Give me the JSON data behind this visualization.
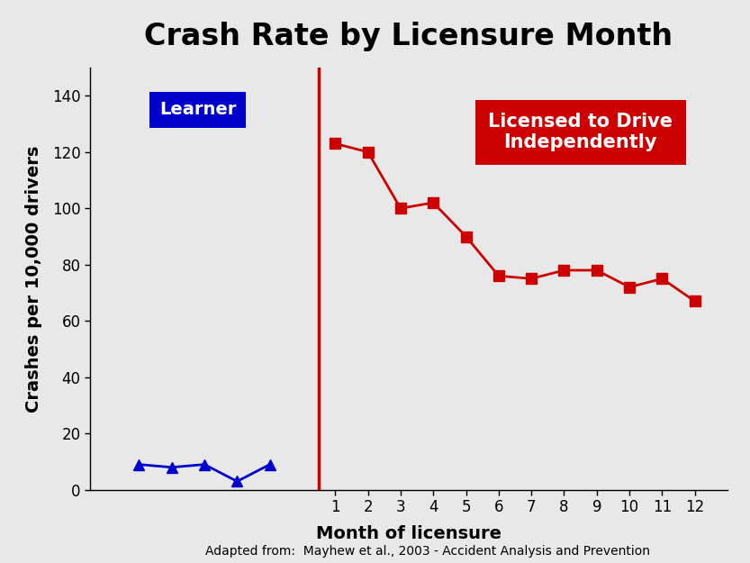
{
  "title": "Crash Rate by Licensure Month",
  "xlabel": "Month of licensure",
  "ylabel": "Crashes per 10,000 drivers",
  "footnote": "Adapted from:  Mayhew et al., 2003 - Accident Analysis and Prevention",
  "learner_x": [
    -5,
    -4,
    -3,
    -2,
    -1
  ],
  "learner_y": [
    9,
    8,
    9,
    3,
    9
  ],
  "licensed_x": [
    1,
    2,
    3,
    4,
    5,
    6,
    7,
    8,
    9,
    10,
    11,
    12
  ],
  "licensed_y": [
    123,
    120,
    100,
    102,
    90,
    76,
    75,
    78,
    78,
    72,
    75,
    67
  ],
  "learner_color": "#0000CC",
  "licensed_color": "#CC0000",
  "vline_x": 0.5,
  "ylim": [
    0,
    150
  ],
  "yticks": [
    0,
    20,
    40,
    60,
    80,
    100,
    120,
    140
  ],
  "xlim_left": -6.5,
  "xlim_right": 13.0,
  "learner_label": "Learner",
  "licensed_label": "Licensed to Drive\nIndependently",
  "learner_box_color": "#0000CC",
  "licensed_box_color": "#CC0000",
  "bg_color": "#e8e8e8",
  "title_fontsize": 24,
  "axis_label_fontsize": 14,
  "tick_fontsize": 12,
  "footnote_fontsize": 10,
  "annotation_fontsize": 14
}
